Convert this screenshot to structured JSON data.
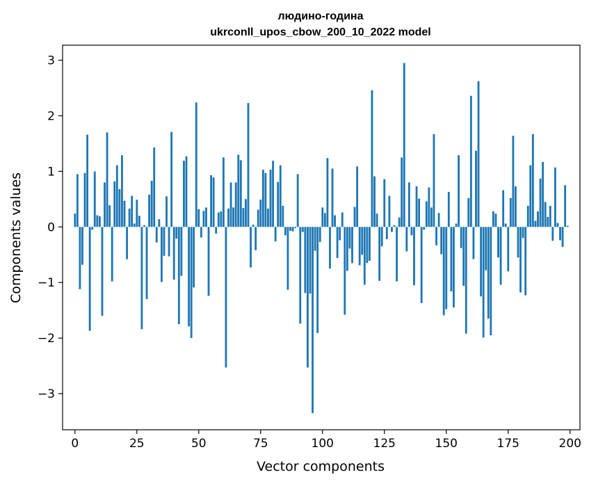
{
  "chart_data": {
    "type": "bar",
    "title": [
      "людино-година",
      "ukrconll_upos_cbow_200_10_2022 model"
    ],
    "xlabel": "Vector components",
    "ylabel": "Components values",
    "xlim": [
      -5,
      204
    ],
    "ylim": [
      -3.65,
      3.27
    ],
    "xticks": [
      0,
      25,
      50,
      75,
      100,
      125,
      150,
      175,
      200
    ],
    "yticks": [
      -3,
      -2,
      -1,
      0,
      1,
      2,
      3
    ],
    "ytick_labels": [
      "−3",
      "−2",
      "−1",
      "0",
      "1",
      "2",
      "3"
    ],
    "bar_color": "#1f77b4",
    "values": [
      0.24,
      0.95,
      -1.12,
      -0.68,
      0.97,
      1.66,
      -1.87,
      -0.05,
      1.0,
      0.21,
      0.19,
      -1.6,
      0.8,
      1.7,
      0.39,
      -0.98,
      0.82,
      1.11,
      0.68,
      1.29,
      0.47,
      -0.58,
      0.33,
      0.56,
      0.06,
      0.49,
      0.2,
      -1.84,
      0.03,
      -1.3,
      0.58,
      0.83,
      1.43,
      -0.28,
      0.14,
      -0.99,
      -0.52,
      0.55,
      -0.53,
      1.71,
      -0.95,
      -0.21,
      -1.75,
      -0.88,
      1.19,
      1.27,
      -1.79,
      -2.0,
      -1.09,
      2.24,
      0.32,
      -0.19,
      0.29,
      0.35,
      -1.24,
      0.93,
      0.89,
      -0.12,
      0.26,
      0.28,
      1.25,
      -2.53,
      0.33,
      0.8,
      0.35,
      0.8,
      1.3,
      1.2,
      0.34,
      0.5,
      2.23,
      -0.73,
      0.04,
      -0.42,
      0.31,
      0.49,
      1.03,
      0.97,
      0.33,
      1.03,
      1.19,
      -0.26,
      0.81,
      1.11,
      0.38,
      -0.15,
      -1.13,
      -0.07,
      -0.08,
      -0.02,
      0.95,
      -1.74,
      -0.09,
      -1.19,
      -2.53,
      -1.2,
      -3.35,
      -0.43,
      -1.91,
      -0.27,
      0.35,
      0.25,
      1.24,
      -0.75,
      1.05,
      0.21,
      -0.56,
      -0.24,
      0.26,
      -1.58,
      -0.79,
      -0.39,
      -0.65,
      0.36,
      1.09,
      -0.69,
      -0.5,
      -1.04,
      -0.65,
      -0.61,
      2.46,
      0.91,
      0.24,
      -0.97,
      -0.35,
      0.86,
      -0.22,
      0.56,
      -0.09,
      0.03,
      -0.98,
      0.17,
      1.25,
      2.95,
      -0.44,
      0.8,
      -0.15,
      -1.05,
      0.73,
      0.51,
      -1.37,
      -0.05,
      0.46,
      0.71,
      0.35,
      1.67,
      -0.33,
      0.25,
      -0.49,
      -1.59,
      -1.48,
      0.63,
      -1.16,
      -1.45,
      0.06,
      1.29,
      -0.38,
      -1.06,
      -1.92,
      0.52,
      2.36,
      -0.58,
      1.37,
      2.62,
      -1.25,
      -1.99,
      -0.78,
      -1.65,
      -1.95,
      0.28,
      0.24,
      -0.55,
      -1.04,
      0.66,
      0.06,
      -0.8,
      0.52,
      1.64,
      0.73,
      -0.55,
      -1.18,
      -0.2,
      -1.23,
      0.38,
      1.11,
      1.67,
      0.11,
      0.28,
      0.87,
      1.17,
      0.45,
      0.18,
      0.38,
      -0.25,
      1.07,
      0.07,
      -0.24,
      -0.36,
      0.75,
      0.02
    ]
  }
}
